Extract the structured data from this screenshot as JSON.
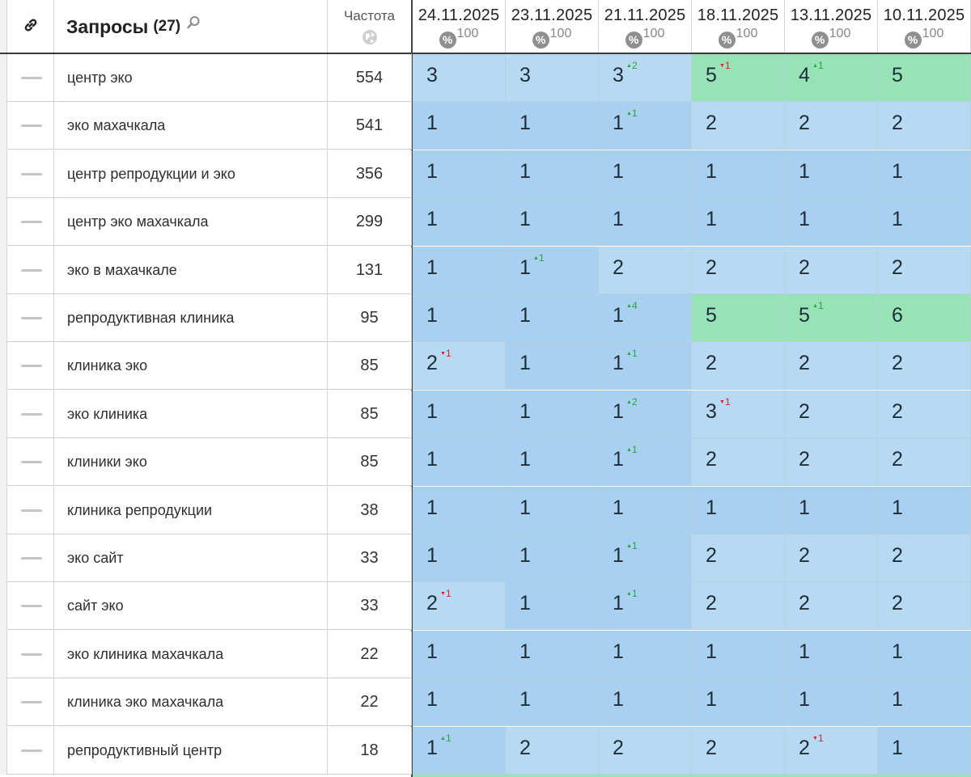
{
  "header": {
    "query_title": "Запросы",
    "query_count": "(27)",
    "freq_label": "Частота",
    "dates": [
      {
        "date": "24.11.2025",
        "pct": "100"
      },
      {
        "date": "23.11.2025",
        "pct": "100"
      },
      {
        "date": "21.11.2025",
        "pct": "100"
      },
      {
        "date": "18.11.2025",
        "pct": "100"
      },
      {
        "date": "13.11.2025",
        "pct": "100"
      },
      {
        "date": "10.11.2025",
        "pct": "100"
      }
    ],
    "pct_icon": "%"
  },
  "colors": {
    "top_blue": "#a8d0ef",
    "lower_blue": "#b7daf2",
    "top_green": "#98e3b6",
    "up": "#2aa33a",
    "down": "#d6232b"
  },
  "icons": [
    "link-icon",
    "search-icon",
    "globe-icon",
    "percent-icon",
    "dash-icon",
    "arrow-up-icon",
    "arrow-down-icon"
  ],
  "rows": [
    {
      "query": "центр эко",
      "freq": "554",
      "pos": [
        {
          "v": "3",
          "c": "b2"
        },
        {
          "v": "3",
          "c": "b2"
        },
        {
          "v": "3",
          "c": "b2",
          "d": "2",
          "dir": "up"
        },
        {
          "v": "5",
          "c": "g",
          "d": "1",
          "dir": "down"
        },
        {
          "v": "4",
          "c": "g",
          "d": "1",
          "dir": "up"
        },
        {
          "v": "5",
          "c": "g"
        }
      ]
    },
    {
      "query": "эко махачкала",
      "freq": "541",
      "pos": [
        {
          "v": "1",
          "c": "b1"
        },
        {
          "v": "1",
          "c": "b1"
        },
        {
          "v": "1",
          "c": "b1",
          "d": "1",
          "dir": "up"
        },
        {
          "v": "2",
          "c": "b2"
        },
        {
          "v": "2",
          "c": "b2"
        },
        {
          "v": "2",
          "c": "b2"
        }
      ]
    },
    {
      "query": "центр репродукции и эко",
      "freq": "356",
      "pos": [
        {
          "v": "1",
          "c": "b1"
        },
        {
          "v": "1",
          "c": "b1"
        },
        {
          "v": "1",
          "c": "b1"
        },
        {
          "v": "1",
          "c": "b1"
        },
        {
          "v": "1",
          "c": "b1"
        },
        {
          "v": "1",
          "c": "b1"
        }
      ]
    },
    {
      "query": "центр эко махачкала",
      "freq": "299",
      "pos": [
        {
          "v": "1",
          "c": "b1"
        },
        {
          "v": "1",
          "c": "b1"
        },
        {
          "v": "1",
          "c": "b1"
        },
        {
          "v": "1",
          "c": "b1"
        },
        {
          "v": "1",
          "c": "b1"
        },
        {
          "v": "1",
          "c": "b1"
        }
      ]
    },
    {
      "query": "эко в махачкале",
      "freq": "131",
      "pos": [
        {
          "v": "1",
          "c": "b1"
        },
        {
          "v": "1",
          "c": "b1",
          "d": "1",
          "dir": "up"
        },
        {
          "v": "2",
          "c": "b2"
        },
        {
          "v": "2",
          "c": "b2"
        },
        {
          "v": "2",
          "c": "b2"
        },
        {
          "v": "2",
          "c": "b2"
        }
      ]
    },
    {
      "query": "репродуктивная клиника",
      "freq": "95",
      "pos": [
        {
          "v": "1",
          "c": "b1"
        },
        {
          "v": "1",
          "c": "b1"
        },
        {
          "v": "1",
          "c": "b1",
          "d": "4",
          "dir": "up"
        },
        {
          "v": "5",
          "c": "g"
        },
        {
          "v": "5",
          "c": "g",
          "d": "1",
          "dir": "up"
        },
        {
          "v": "6",
          "c": "g"
        }
      ]
    },
    {
      "query": "клиника эко",
      "freq": "85",
      "pos": [
        {
          "v": "2",
          "c": "b2",
          "d": "1",
          "dir": "down"
        },
        {
          "v": "1",
          "c": "b1"
        },
        {
          "v": "1",
          "c": "b1",
          "d": "1",
          "dir": "up"
        },
        {
          "v": "2",
          "c": "b2"
        },
        {
          "v": "2",
          "c": "b2"
        },
        {
          "v": "2",
          "c": "b2"
        }
      ]
    },
    {
      "query": "эко клиника",
      "freq": "85",
      "pos": [
        {
          "v": "1",
          "c": "b1"
        },
        {
          "v": "1",
          "c": "b1"
        },
        {
          "v": "1",
          "c": "b1",
          "d": "2",
          "dir": "up"
        },
        {
          "v": "3",
          "c": "b2",
          "d": "1",
          "dir": "down"
        },
        {
          "v": "2",
          "c": "b2"
        },
        {
          "v": "2",
          "c": "b2"
        }
      ]
    },
    {
      "query": "клиники эко",
      "freq": "85",
      "pos": [
        {
          "v": "1",
          "c": "b1"
        },
        {
          "v": "1",
          "c": "b1"
        },
        {
          "v": "1",
          "c": "b1",
          "d": "1",
          "dir": "up"
        },
        {
          "v": "2",
          "c": "b2"
        },
        {
          "v": "2",
          "c": "b2"
        },
        {
          "v": "2",
          "c": "b2"
        }
      ]
    },
    {
      "query": "клиника репродукции",
      "freq": "38",
      "pos": [
        {
          "v": "1",
          "c": "b1"
        },
        {
          "v": "1",
          "c": "b1"
        },
        {
          "v": "1",
          "c": "b1"
        },
        {
          "v": "1",
          "c": "b1"
        },
        {
          "v": "1",
          "c": "b1"
        },
        {
          "v": "1",
          "c": "b1"
        }
      ]
    },
    {
      "query": "эко сайт",
      "freq": "33",
      "pos": [
        {
          "v": "1",
          "c": "b1"
        },
        {
          "v": "1",
          "c": "b1"
        },
        {
          "v": "1",
          "c": "b1",
          "d": "1",
          "dir": "up"
        },
        {
          "v": "2",
          "c": "b2"
        },
        {
          "v": "2",
          "c": "b2"
        },
        {
          "v": "2",
          "c": "b2"
        }
      ]
    },
    {
      "query": "сайт эко",
      "freq": "33",
      "pos": [
        {
          "v": "2",
          "c": "b2",
          "d": "1",
          "dir": "down"
        },
        {
          "v": "1",
          "c": "b1"
        },
        {
          "v": "1",
          "c": "b1",
          "d": "1",
          "dir": "up"
        },
        {
          "v": "2",
          "c": "b2"
        },
        {
          "v": "2",
          "c": "b2"
        },
        {
          "v": "2",
          "c": "b2"
        }
      ]
    },
    {
      "query": "эко клиника махачкала",
      "freq": "22",
      "pos": [
        {
          "v": "1",
          "c": "b1"
        },
        {
          "v": "1",
          "c": "b1"
        },
        {
          "v": "1",
          "c": "b1"
        },
        {
          "v": "1",
          "c": "b1"
        },
        {
          "v": "1",
          "c": "b1"
        },
        {
          "v": "1",
          "c": "b1"
        }
      ]
    },
    {
      "query": "клиника эко махачкала",
      "freq": "22",
      "pos": [
        {
          "v": "1",
          "c": "b1"
        },
        {
          "v": "1",
          "c": "b1"
        },
        {
          "v": "1",
          "c": "b1"
        },
        {
          "v": "1",
          "c": "b1"
        },
        {
          "v": "1",
          "c": "b1"
        },
        {
          "v": "1",
          "c": "b1"
        }
      ]
    },
    {
      "query": "репродуктивный центр",
      "freq": "18",
      "pos": [
        {
          "v": "1",
          "c": "b1",
          "d": "1",
          "dir": "up"
        },
        {
          "v": "2",
          "c": "b2"
        },
        {
          "v": "2",
          "c": "b2"
        },
        {
          "v": "2",
          "c": "b2"
        },
        {
          "v": "2",
          "c": "b2",
          "d": "1",
          "dir": "down"
        },
        {
          "v": "1",
          "c": "b1"
        }
      ]
    }
  ]
}
